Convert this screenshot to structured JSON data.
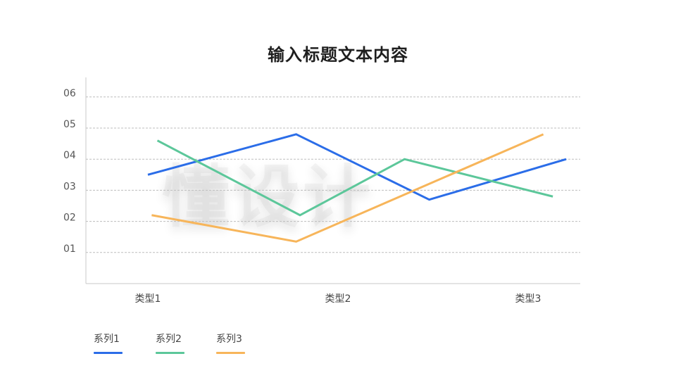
{
  "title": "输入标题文本内容",
  "watermark": "懂设计",
  "chart_data": {
    "type": "line",
    "categories": [
      "类型1",
      "类型2",
      "类型3"
    ],
    "y_tick_labels": [
      "01",
      "02",
      "03",
      "04",
      "05",
      "06"
    ],
    "ylim": [
      0,
      6
    ],
    "grid": true,
    "legend_position": "bottom-left",
    "series": [
      {
        "name": "系列1",
        "color": "#2B6DE8",
        "points": [
          [
            0,
            3.5
          ],
          [
            0.78,
            4.8
          ],
          [
            1.48,
            2.7
          ],
          [
            2.2,
            4.0
          ]
        ]
      },
      {
        "name": "系列2",
        "color": "#5CC79A",
        "points": [
          [
            0.05,
            4.6
          ],
          [
            0.8,
            2.2
          ],
          [
            1.35,
            4.0
          ],
          [
            2.13,
            2.8
          ]
        ]
      },
      {
        "name": "系列3",
        "color": "#F7B55A",
        "points": [
          [
            0.02,
            2.2
          ],
          [
            0.78,
            1.35
          ],
          [
            2.08,
            4.8
          ]
        ]
      }
    ]
  }
}
